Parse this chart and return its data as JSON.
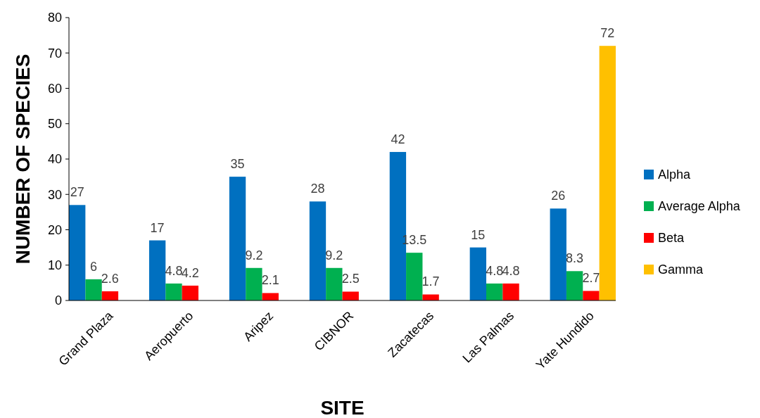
{
  "chart_data": {
    "type": "bar",
    "xlabel": "SITE",
    "ylabel": "NUMBER OF SPECIES",
    "categories": [
      "Grand Plaza",
      "Aeropuerto",
      "Aripez",
      "CIBNOR",
      "Zacatecas",
      "Las Palmas",
      "Yate Hundido"
    ],
    "series": [
      {
        "name": "Alpha",
        "color": "#0070c0",
        "values": [
          27,
          17,
          35,
          28,
          42,
          15,
          26
        ]
      },
      {
        "name": "Average Alpha",
        "color": "#00b050",
        "values": [
          6,
          4.8,
          9.2,
          9.2,
          13.5,
          4.8,
          8.3
        ]
      },
      {
        "name": "Beta",
        "color": "#ff0000",
        "values": [
          2.6,
          4.2,
          2.1,
          2.5,
          1.7,
          4.8,
          2.7
        ]
      },
      {
        "name": "Gamma",
        "color": "#ffc000",
        "values": [
          null,
          null,
          null,
          null,
          null,
          null,
          72
        ]
      }
    ],
    "ylim": [
      0,
      80
    ],
    "yticks": [
      0,
      10,
      20,
      30,
      40,
      50,
      60,
      70,
      80
    ],
    "grid": false,
    "legend": "right",
    "data_labels": true
  }
}
